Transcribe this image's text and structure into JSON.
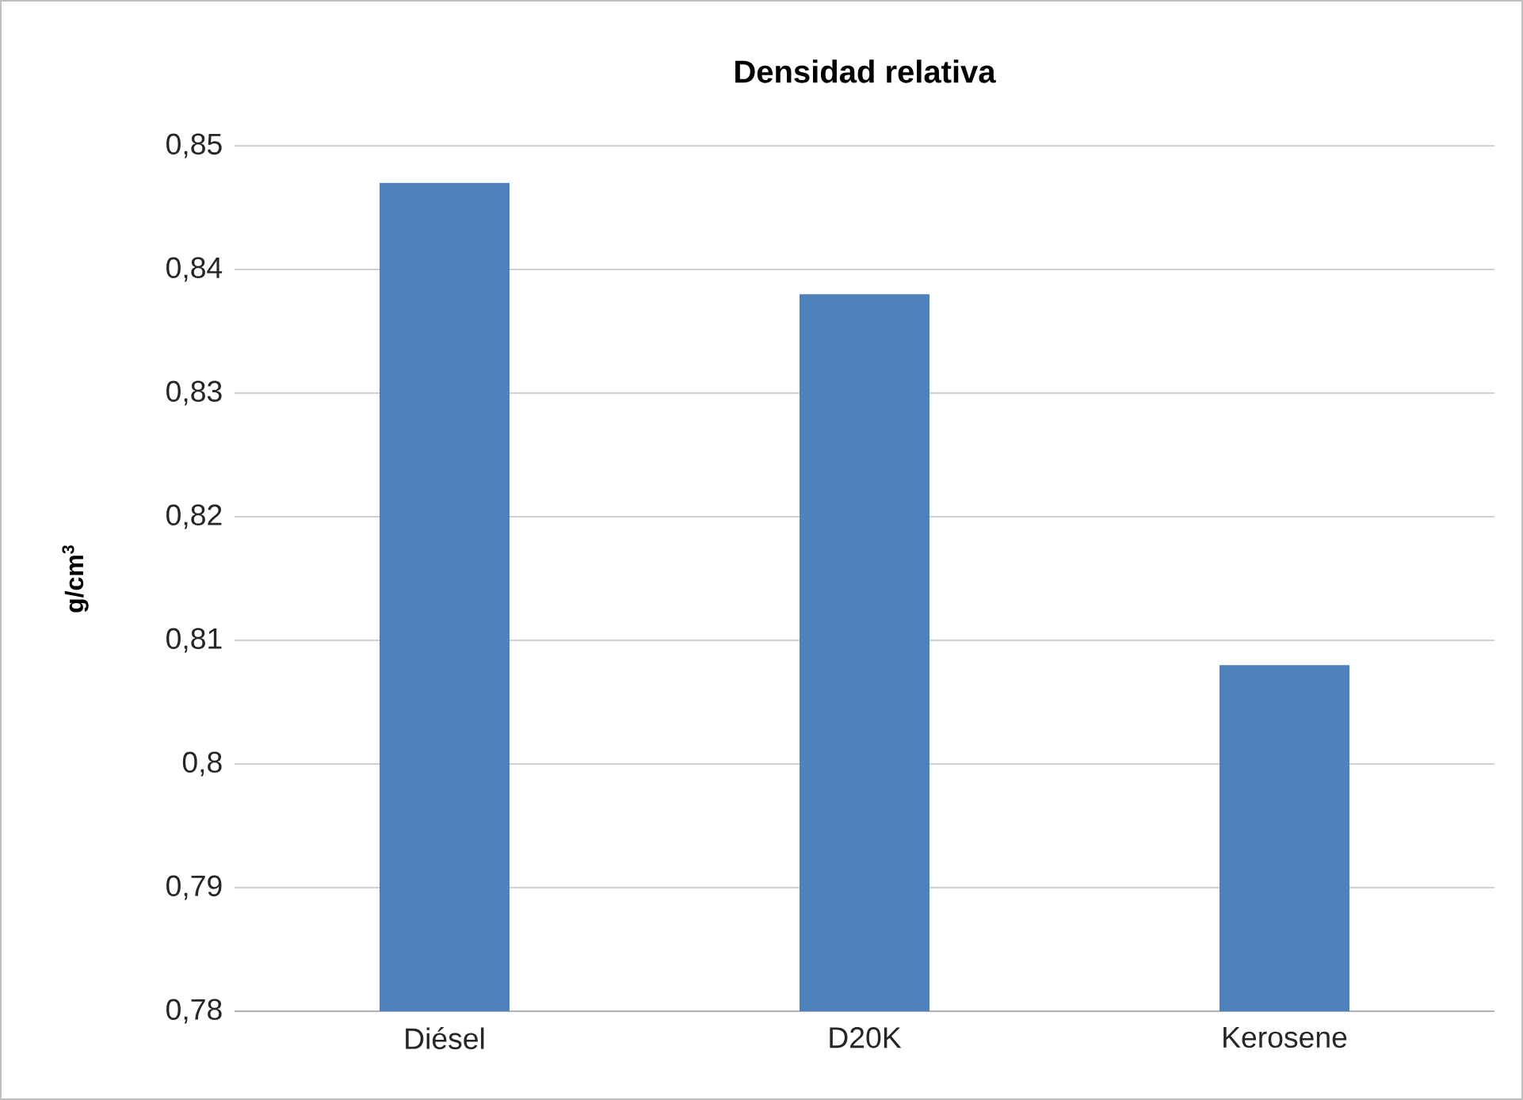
{
  "chart_data": {
    "type": "bar",
    "title": "Densidad relativa",
    "ylabel": "g/cm$^{3}$",
    "categories": [
      "Diésel",
      "D20K",
      "Kerosene"
    ],
    "values": [
      0.847,
      0.838,
      0.808
    ],
    "color": "#4f81bd",
    "ylim": [
      0.78,
      0.85
    ],
    "yticks": [
      {
        "value": 0.78,
        "label": "0,78"
      },
      {
        "value": 0.79,
        "label": "0,79"
      },
      {
        "value": 0.8,
        "label": "0,8"
      },
      {
        "value": 0.81,
        "label": "0,81"
      },
      {
        "value": 0.82,
        "label": "0,82"
      },
      {
        "value": 0.83,
        "label": "0,83"
      },
      {
        "value": 0.84,
        "label": "0,84"
      },
      {
        "value": 0.85,
        "label": "0,85"
      }
    ],
    "grid": "y"
  }
}
